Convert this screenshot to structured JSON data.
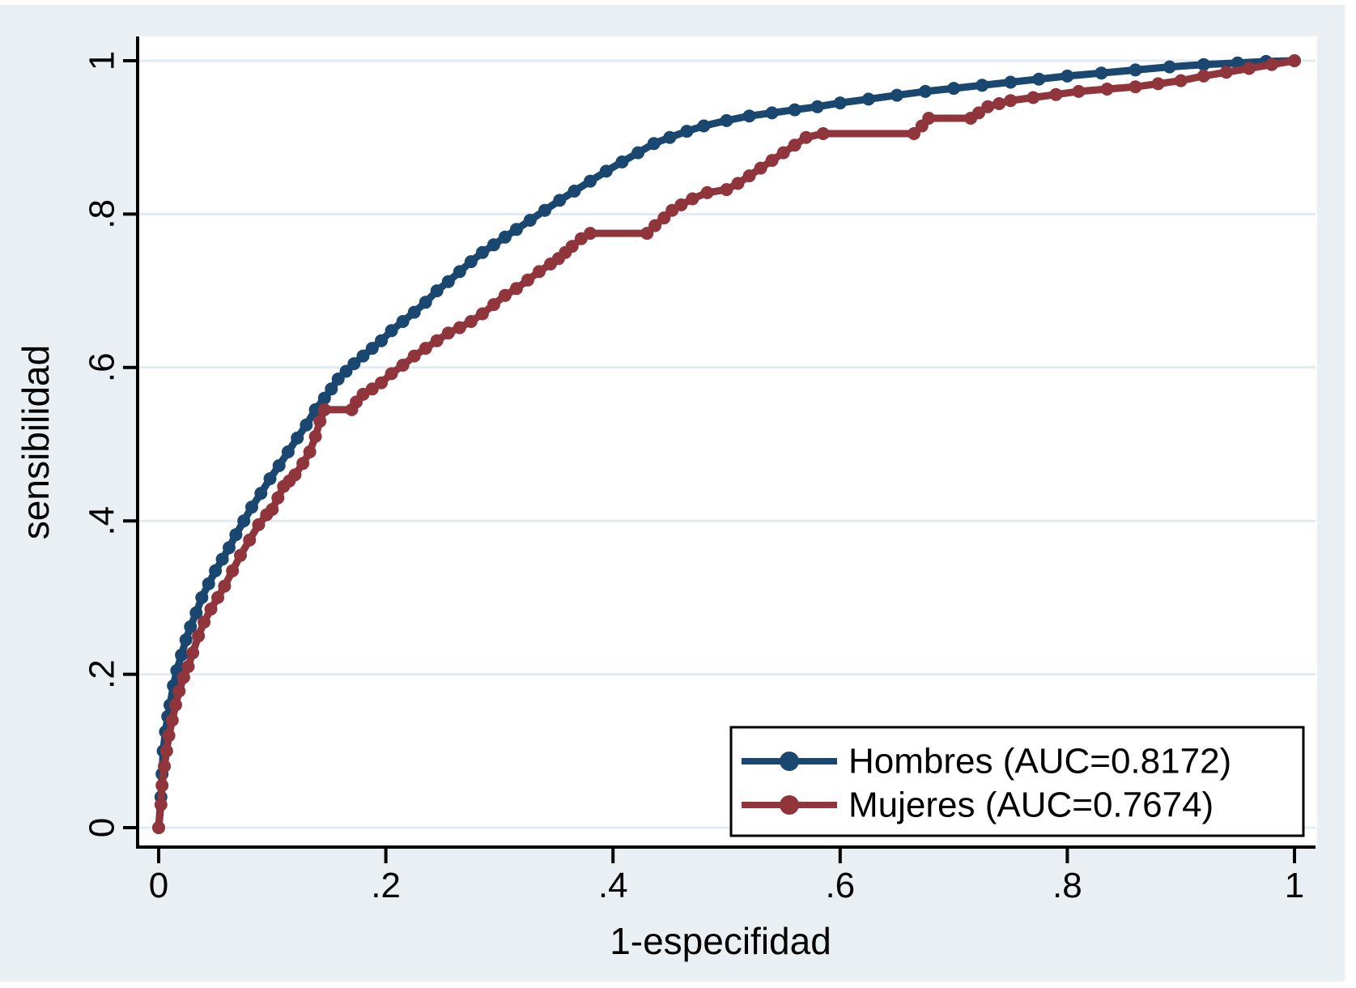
{
  "chart_data": {
    "type": "line",
    "title": "",
    "xlabel": "1-especifidad",
    "ylabel": "sensibilidad",
    "xlim": [
      0,
      1
    ],
    "ylim": [
      0,
      1
    ],
    "xticks": [
      "0",
      ".2",
      ".4",
      ".6",
      ".8",
      "1"
    ],
    "xtick_values": [
      0,
      0.2,
      0.4,
      0.6,
      0.8,
      1
    ],
    "yticks": [
      "0",
      ".2",
      ".4",
      ".6",
      ".8",
      "1"
    ],
    "ytick_values": [
      0,
      0.2,
      0.4,
      0.6,
      0.8,
      1
    ],
    "grid": "horizontal-only",
    "legend_position": "inside-bottom-right",
    "colors": {
      "background": "#e9eff2",
      "plot_background": "#ffffff",
      "gridline": "#e1ebf1",
      "axis": "#000000",
      "legend_border": "#000000",
      "legend_fill": "#ffffff",
      "hombres": "#1a476f",
      "mujeres": "#90353b"
    },
    "series": [
      {
        "name": "Hombres (AUC=0.8172)",
        "auc": 0.8172,
        "color": "#1a476f",
        "points": [
          [
            0,
            0
          ],
          [
            0.002,
            0.04
          ],
          [
            0.003,
            0.07
          ],
          [
            0.004,
            0.1
          ],
          [
            0.006,
            0.125
          ],
          [
            0.008,
            0.145
          ],
          [
            0.01,
            0.16
          ],
          [
            0.013,
            0.185
          ],
          [
            0.016,
            0.205
          ],
          [
            0.02,
            0.225
          ],
          [
            0.024,
            0.245
          ],
          [
            0.028,
            0.262
          ],
          [
            0.033,
            0.28
          ],
          [
            0.038,
            0.3
          ],
          [
            0.044,
            0.318
          ],
          [
            0.05,
            0.335
          ],
          [
            0.056,
            0.35
          ],
          [
            0.062,
            0.365
          ],
          [
            0.068,
            0.382
          ],
          [
            0.075,
            0.4
          ],
          [
            0.082,
            0.418
          ],
          [
            0.09,
            0.436
          ],
          [
            0.098,
            0.455
          ],
          [
            0.106,
            0.472
          ],
          [
            0.114,
            0.49
          ],
          [
            0.122,
            0.508
          ],
          [
            0.13,
            0.525
          ],
          [
            0.138,
            0.545
          ],
          [
            0.146,
            0.56
          ],
          [
            0.152,
            0.572
          ],
          [
            0.158,
            0.585
          ],
          [
            0.165,
            0.595
          ],
          [
            0.172,
            0.605
          ],
          [
            0.18,
            0.615
          ],
          [
            0.188,
            0.625
          ],
          [
            0.196,
            0.635
          ],
          [
            0.205,
            0.648
          ],
          [
            0.215,
            0.66
          ],
          [
            0.225,
            0.672
          ],
          [
            0.235,
            0.685
          ],
          [
            0.245,
            0.7
          ],
          [
            0.255,
            0.712
          ],
          [
            0.265,
            0.725
          ],
          [
            0.275,
            0.738
          ],
          [
            0.285,
            0.75
          ],
          [
            0.295,
            0.76
          ],
          [
            0.305,
            0.77
          ],
          [
            0.315,
            0.78
          ],
          [
            0.327,
            0.792
          ],
          [
            0.34,
            0.805
          ],
          [
            0.353,
            0.818
          ],
          [
            0.366,
            0.83
          ],
          [
            0.38,
            0.843
          ],
          [
            0.394,
            0.856
          ],
          [
            0.408,
            0.868
          ],
          [
            0.422,
            0.88
          ],
          [
            0.436,
            0.892
          ],
          [
            0.45,
            0.9
          ],
          [
            0.465,
            0.908
          ],
          [
            0.48,
            0.915
          ],
          [
            0.5,
            0.922
          ],
          [
            0.52,
            0.928
          ],
          [
            0.54,
            0.932
          ],
          [
            0.56,
            0.936
          ],
          [
            0.58,
            0.94
          ],
          [
            0.6,
            0.945
          ],
          [
            0.625,
            0.95
          ],
          [
            0.65,
            0.955
          ],
          [
            0.675,
            0.96
          ],
          [
            0.7,
            0.964
          ],
          [
            0.725,
            0.968
          ],
          [
            0.75,
            0.972
          ],
          [
            0.775,
            0.976
          ],
          [
            0.8,
            0.98
          ],
          [
            0.83,
            0.984
          ],
          [
            0.86,
            0.988
          ],
          [
            0.89,
            0.992
          ],
          [
            0.92,
            0.995
          ],
          [
            0.95,
            0.997
          ],
          [
            0.975,
            0.999
          ],
          [
            1,
            1
          ]
        ]
      },
      {
        "name": "Mujeres (AUC=0.7674)",
        "auc": 0.7674,
        "color": "#90353b",
        "points": [
          [
            0,
            0
          ],
          [
            0.002,
            0.03
          ],
          [
            0.003,
            0.055
          ],
          [
            0.005,
            0.08
          ],
          [
            0.007,
            0.1
          ],
          [
            0.009,
            0.12
          ],
          [
            0.012,
            0.14
          ],
          [
            0.015,
            0.16
          ],
          [
            0.018,
            0.178
          ],
          [
            0.022,
            0.196
          ],
          [
            0.026,
            0.21
          ],
          [
            0.03,
            0.228
          ],
          [
            0.035,
            0.25
          ],
          [
            0.04,
            0.268
          ],
          [
            0.046,
            0.285
          ],
          [
            0.052,
            0.3
          ],
          [
            0.058,
            0.315
          ],
          [
            0.065,
            0.335
          ],
          [
            0.072,
            0.355
          ],
          [
            0.08,
            0.375
          ],
          [
            0.088,
            0.395
          ],
          [
            0.095,
            0.408
          ],
          [
            0.1,
            0.415
          ],
          [
            0.105,
            0.43
          ],
          [
            0.11,
            0.445
          ],
          [
            0.115,
            0.452
          ],
          [
            0.12,
            0.46
          ],
          [
            0.127,
            0.475
          ],
          [
            0.133,
            0.49
          ],
          [
            0.138,
            0.51
          ],
          [
            0.142,
            0.53
          ],
          [
            0.146,
            0.545
          ],
          [
            0.17,
            0.545
          ],
          [
            0.174,
            0.555
          ],
          [
            0.18,
            0.565
          ],
          [
            0.188,
            0.572
          ],
          [
            0.196,
            0.58
          ],
          [
            0.205,
            0.592
          ],
          [
            0.215,
            0.603
          ],
          [
            0.225,
            0.615
          ],
          [
            0.235,
            0.625
          ],
          [
            0.245,
            0.635
          ],
          [
            0.255,
            0.645
          ],
          [
            0.265,
            0.652
          ],
          [
            0.275,
            0.66
          ],
          [
            0.285,
            0.67
          ],
          [
            0.295,
            0.682
          ],
          [
            0.305,
            0.694
          ],
          [
            0.315,
            0.703
          ],
          [
            0.325,
            0.714
          ],
          [
            0.335,
            0.725
          ],
          [
            0.345,
            0.735
          ],
          [
            0.352,
            0.742
          ],
          [
            0.358,
            0.75
          ],
          [
            0.364,
            0.758
          ],
          [
            0.372,
            0.768
          ],
          [
            0.38,
            0.775
          ],
          [
            0.43,
            0.775
          ],
          [
            0.437,
            0.785
          ],
          [
            0.445,
            0.795
          ],
          [
            0.452,
            0.805
          ],
          [
            0.46,
            0.812
          ],
          [
            0.47,
            0.82
          ],
          [
            0.483,
            0.828
          ],
          [
            0.5,
            0.832
          ],
          [
            0.51,
            0.84
          ],
          [
            0.52,
            0.85
          ],
          [
            0.53,
            0.86
          ],
          [
            0.54,
            0.87
          ],
          [
            0.55,
            0.88
          ],
          [
            0.56,
            0.89
          ],
          [
            0.57,
            0.9
          ],
          [
            0.585,
            0.905
          ],
          [
            0.665,
            0.905
          ],
          [
            0.672,
            0.915
          ],
          [
            0.678,
            0.925
          ],
          [
            0.715,
            0.925
          ],
          [
            0.722,
            0.932
          ],
          [
            0.73,
            0.94
          ],
          [
            0.74,
            0.944
          ],
          [
            0.75,
            0.948
          ],
          [
            0.77,
            0.952
          ],
          [
            0.79,
            0.956
          ],
          [
            0.81,
            0.96
          ],
          [
            0.835,
            0.963
          ],
          [
            0.86,
            0.966
          ],
          [
            0.88,
            0.97
          ],
          [
            0.9,
            0.974
          ],
          [
            0.92,
            0.98
          ],
          [
            0.94,
            0.985
          ],
          [
            0.96,
            0.99
          ],
          [
            0.98,
            0.995
          ],
          [
            1,
            1
          ]
        ]
      }
    ]
  }
}
